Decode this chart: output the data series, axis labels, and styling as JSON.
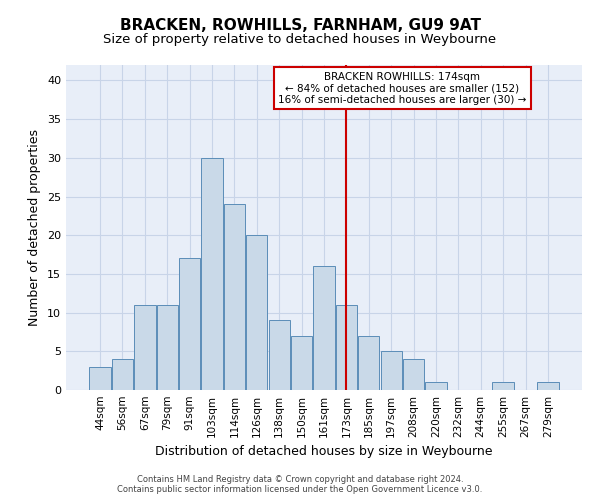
{
  "title": "BRACKEN, ROWHILLS, FARNHAM, GU9 9AT",
  "subtitle": "Size of property relative to detached houses in Weybourne",
  "xlabel": "Distribution of detached houses by size in Weybourne",
  "ylabel": "Number of detached properties",
  "footer_line1": "Contains HM Land Registry data © Crown copyright and database right 2024.",
  "footer_line2": "Contains public sector information licensed under the Open Government Licence v3.0.",
  "bar_labels": [
    "44sqm",
    "56sqm",
    "67sqm",
    "79sqm",
    "91sqm",
    "103sqm",
    "114sqm",
    "126sqm",
    "138sqm",
    "150sqm",
    "161sqm",
    "173sqm",
    "185sqm",
    "197sqm",
    "208sqm",
    "220sqm",
    "232sqm",
    "244sqm",
    "255sqm",
    "267sqm",
    "279sqm"
  ],
  "bar_values": [
    3,
    4,
    11,
    11,
    17,
    30,
    24,
    20,
    9,
    7,
    16,
    11,
    7,
    5,
    4,
    1,
    0,
    0,
    1,
    0,
    1
  ],
  "bar_color": "#c9d9e8",
  "bar_edge_color": "#5b8db8",
  "annotation_label": "BRACKEN ROWHILLS: 174sqm",
  "annotation_line1": "← 84% of detached houses are smaller (152)",
  "annotation_line2": "16% of semi-detached houses are larger (30) →",
  "vline_index": 11,
  "ylim": [
    0,
    42
  ],
  "yticks": [
    0,
    5,
    10,
    15,
    20,
    25,
    30,
    35,
    40
  ],
  "grid_color": "#c8d4e8",
  "background_color": "#e8eef8",
  "title_fontsize": 11,
  "subtitle_fontsize": 9.5,
  "tick_fontsize": 7.5,
  "ylabel_fontsize": 9,
  "xlabel_fontsize": 9,
  "annotation_box_color": "#ffffff",
  "annotation_box_edge_color": "#cc0000",
  "vline_color": "#cc0000"
}
